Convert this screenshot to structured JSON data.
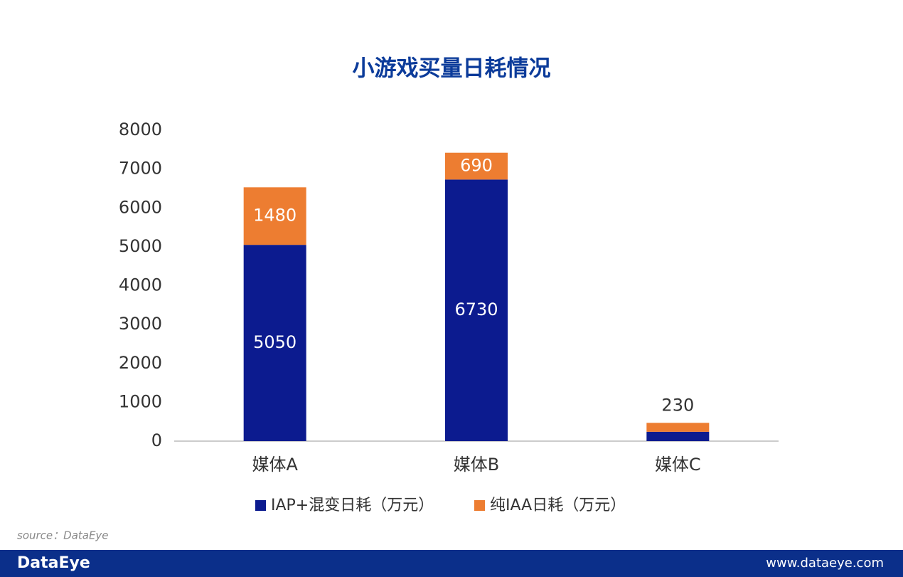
{
  "chart_data": {
    "type": "stacked_bar",
    "title": "小游戏买量日耗情况",
    "categories": [
      "媒体A",
      "媒体B",
      "媒体C"
    ],
    "series": [
      {
        "name": "IAP+混变日耗（万元）",
        "color": "#0c1b8f",
        "values": [
          5050,
          6730,
          240
        ],
        "value_labels": [
          "5050",
          "6730",
          null
        ]
      },
      {
        "name": "纯IAA日耗（万元）",
        "color": "#ed7d31",
        "values": [
          1480,
          690,
          230
        ]
      }
    ],
    "ylim": [
      0,
      8000
    ],
    "yticks": [
      0,
      1000,
      2000,
      3000,
      4000,
      5000,
      6000,
      7000,
      8000
    ],
    "grid": false,
    "legend": "bottom"
  },
  "source": "source：DataEye",
  "footer": {
    "logo": "DataEye",
    "url": "www.dataeye.com"
  }
}
